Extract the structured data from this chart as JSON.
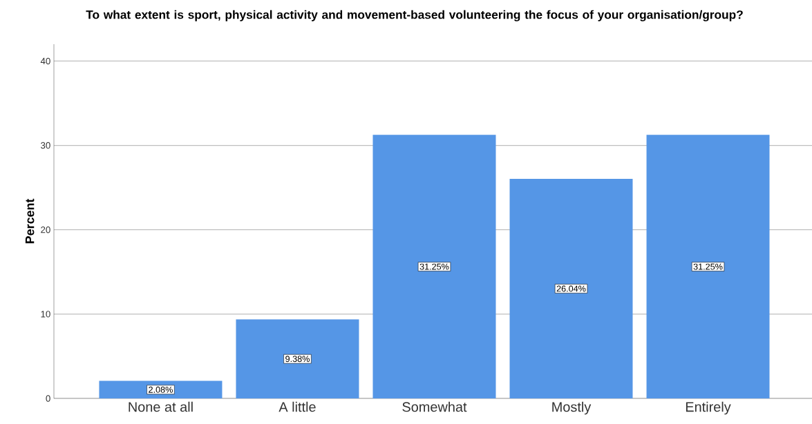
{
  "chart_data": {
    "type": "bar",
    "title": "To what extent is sport, physical activity and movement-based volunteering the focus of your organisation/group?",
    "ylabel": "Percent",
    "categories": [
      "None at all",
      "A little",
      "Somewhat",
      "Mostly",
      "Entirely"
    ],
    "values": [
      2.08,
      9.38,
      31.25,
      26.04,
      31.25
    ],
    "value_labels": [
      "2.08%",
      "9.38%",
      "31.25%",
      "26.04%",
      "31.25%"
    ],
    "color": "#5596e6",
    "ylim": [
      0,
      42
    ],
    "yticks": [
      0,
      10,
      20,
      30,
      40
    ],
    "grid": "y"
  }
}
